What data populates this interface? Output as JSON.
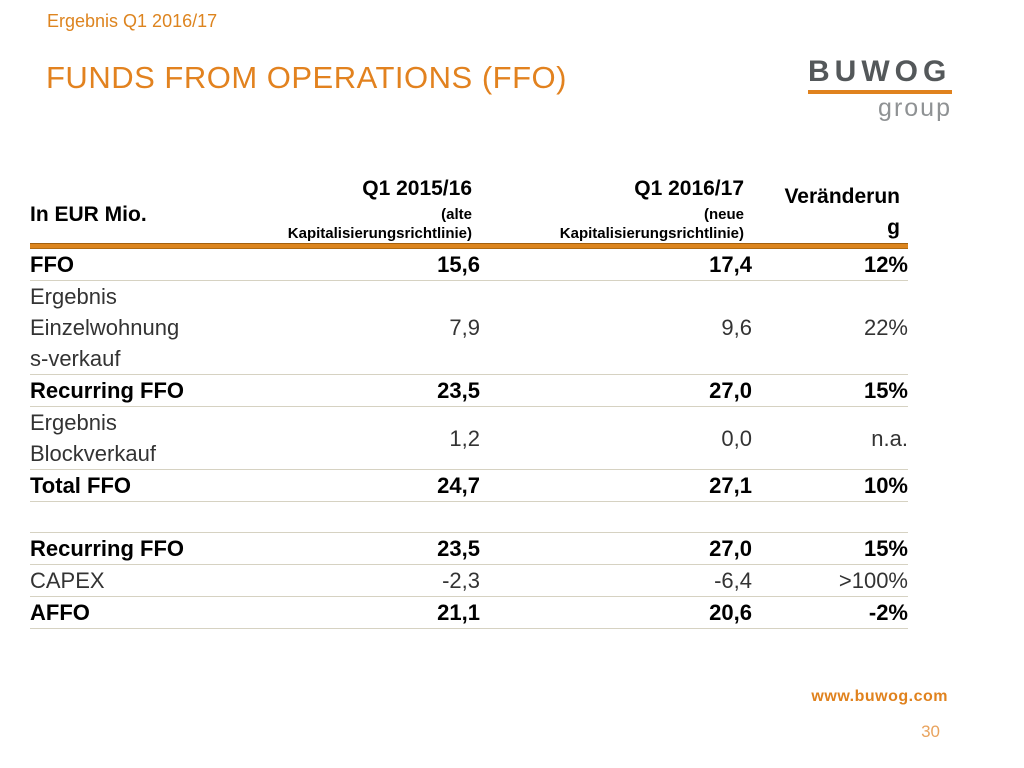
{
  "slide": {
    "eyebrow": "Ergebnis Q1 2016/17",
    "title": "FUNDS FROM OPERATIONS (FFO)",
    "website": "www.buwog.com",
    "page_number": "30"
  },
  "logo": {
    "name": "BUWOG",
    "sub": "group"
  },
  "colors": {
    "accent_orange": "#e0821e",
    "rule_orange": "#dc851e",
    "logo_gray": "#54585a",
    "logo_light_gray": "#8f9294",
    "separator": "#d6d2c2",
    "page_number_orange": "#e9a35d"
  },
  "table": {
    "unit_label": "In EUR Mio.",
    "columns": [
      {
        "title": "Q1 2015/16",
        "subtitle": "(alte\nKapitalisierungsrichtlinie)"
      },
      {
        "title": "Q1 2016/17",
        "subtitle": "(neue\nKapitalisierungsrichtlinie)"
      },
      {
        "title": "Veränderun\ng"
      }
    ],
    "rows": [
      {
        "label": "FFO",
        "q1_1516": "15,6",
        "q1_1617": "17,4",
        "change": "12%"
      },
      {
        "label": "Ergebnis\nEinzelwohnung\ns-verkauf",
        "q1_1516": "7,9",
        "q1_1617": "9,6",
        "change": "22%"
      },
      {
        "label": "Recurring FFO",
        "q1_1516": "23,5",
        "q1_1617": "27,0",
        "change": "15%"
      },
      {
        "label": "Ergebnis\nBlockverkauf",
        "q1_1516": "1,2",
        "q1_1617": "0,0",
        "change": "n.a."
      },
      {
        "label": "Total FFO",
        "q1_1516": "24,7",
        "q1_1617": "27,1",
        "change": "10%"
      },
      {
        "label": "",
        "q1_1516": "",
        "q1_1617": "",
        "change": ""
      },
      {
        "label": "Recurring FFO",
        "q1_1516": "23,5",
        "q1_1617": "27,0",
        "change": "15%"
      },
      {
        "label": "CAPEX",
        "q1_1516": "-2,3",
        "q1_1617": "-6,4",
        "change": ">100%"
      },
      {
        "label": "AFFO",
        "q1_1516": "21,1",
        "q1_1617": "20,6",
        "change": "-2%"
      }
    ]
  }
}
